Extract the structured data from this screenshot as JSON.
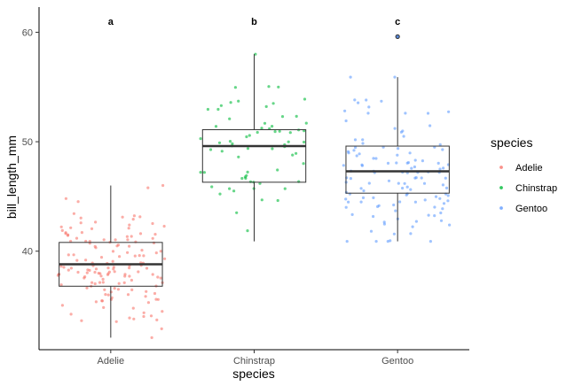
{
  "chart_data": {
    "type": "boxplot",
    "xlabel": "species",
    "ylabel": "bill_length_mm",
    "categories": [
      "Adelie",
      "Chinstrap",
      "Gentoo"
    ],
    "ylim": [
      31,
      62.3
    ],
    "yticks": [
      40,
      50,
      60
    ],
    "grid": false,
    "legend": {
      "title": "species",
      "placement": "right",
      "entries": [
        "Adelie",
        "Chinstrap",
        "Gentoo"
      ]
    },
    "colors": {
      "Adelie": "#F8766D",
      "Chinstrap": "#00BA38",
      "Gentoo": "#619CFF"
    },
    "boxes": [
      {
        "name": "Adelie",
        "min": 32.1,
        "q1": 36.8,
        "median": 38.8,
        "q3": 40.8,
        "max": 46.0,
        "outliers": [],
        "letter": "a"
      },
      {
        "name": "Chinstrap",
        "min": 40.9,
        "q1": 46.3,
        "median": 49.6,
        "q3": 51.1,
        "max": 58.0,
        "outliers": [],
        "letter": "b"
      },
      {
        "name": "Gentoo",
        "min": 40.9,
        "q1": 45.3,
        "median": 47.3,
        "q3": 49.6,
        "max": 55.9,
        "outliers": [
          59.6
        ],
        "letter": "c"
      }
    ],
    "jitter_points": {
      "Adelie": 150,
      "Chinstrap": 68,
      "Gentoo": 123
    }
  }
}
